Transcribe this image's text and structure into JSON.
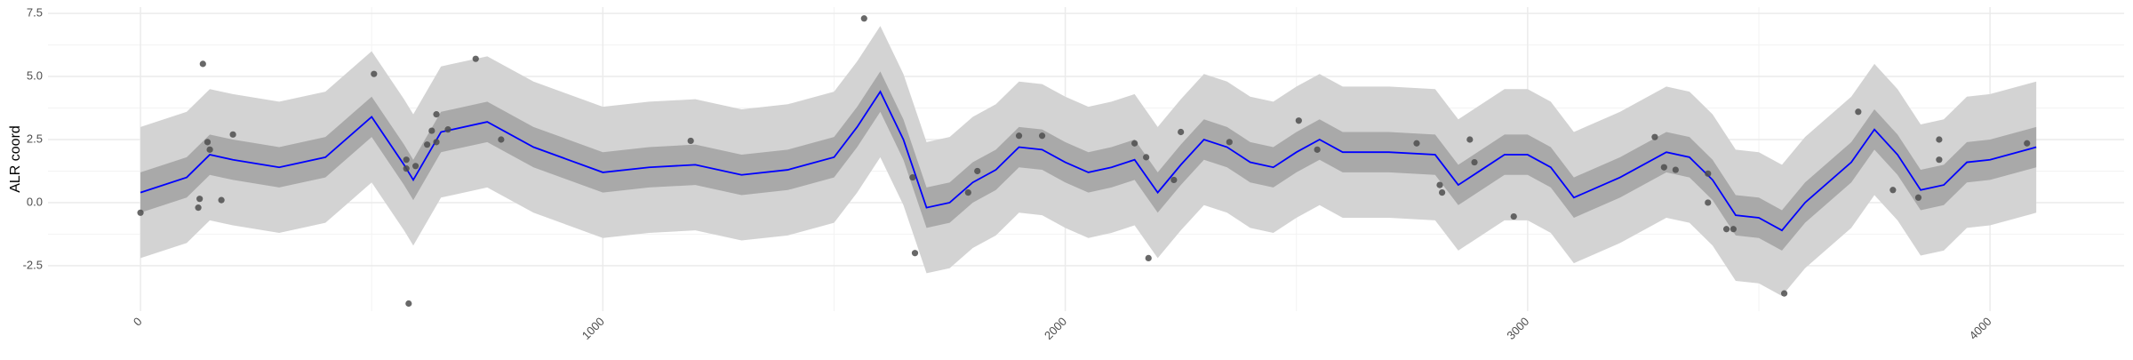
{
  "chart_data": {
    "type": "gp-regression",
    "y_label": "ALR coord",
    "xlim": [
      -200,
      4290
    ],
    "ylim": [
      -4.3,
      7.75
    ],
    "xticks": [
      0,
      1000,
      2000,
      3000,
      4000
    ],
    "yticks": [
      -2.5,
      {
        "value": 0,
        "label": "0.0"
      },
      2.5,
      {
        "value": 5,
        "label": "5.0"
      },
      7.5
    ],
    "grid": true,
    "x": [
      0,
      100,
      150,
      200,
      300,
      400,
      500,
      570,
      590,
      650,
      750,
      850,
      1000,
      1100,
      1200,
      1300,
      1400,
      1500,
      1550,
      1600,
      1650,
      1700,
      1750,
      1800,
      1850,
      1900,
      1950,
      2000,
      2050,
      2100,
      2150,
      2200,
      2250,
      2300,
      2350,
      2400,
      2450,
      2500,
      2550,
      2600,
      2700,
      2800,
      2850,
      2900,
      2950,
      3000,
      3050,
      3100,
      3200,
      3300,
      3350,
      3400,
      3450,
      3500,
      3550,
      3600,
      3700,
      3750,
      3800,
      3850,
      3900,
      3950,
      4000,
      4100
    ],
    "mean": {
      "color": "#0000ff",
      "values": [
        0.4,
        1.0,
        1.9,
        1.7,
        1.4,
        1.8,
        3.4,
        1.5,
        0.9,
        2.8,
        3.2,
        2.2,
        1.2,
        1.4,
        1.5,
        1.1,
        1.3,
        1.8,
        3.0,
        4.4,
        2.5,
        -0.2,
        0.0,
        0.8,
        1.3,
        2.2,
        2.1,
        1.6,
        1.2,
        1.4,
        1.7,
        0.4,
        1.5,
        2.5,
        2.2,
        1.6,
        1.4,
        2.0,
        2.5,
        2.0,
        2.0,
        1.9,
        0.7,
        1.3,
        1.9,
        1.9,
        1.4,
        0.2,
        1.0,
        2.0,
        1.8,
        0.9,
        -0.5,
        -0.6,
        -1.1,
        0.0,
        1.6,
        2.9,
        1.9,
        0.5,
        0.7,
        1.6,
        1.7,
        2.2
      ]
    },
    "bands": [
      {
        "color": "#d3d3d3",
        "lower": [
          -2.2,
          -1.6,
          -0.7,
          -0.9,
          -1.2,
          -0.8,
          0.8,
          -1.1,
          -1.7,
          0.2,
          0.6,
          -0.4,
          -1.4,
          -1.2,
          -1.1,
          -1.5,
          -1.3,
          -0.8,
          0.4,
          1.8,
          -0.1,
          -2.8,
          -2.6,
          -1.8,
          -1.3,
          -0.4,
          -0.5,
          -1.0,
          -1.4,
          -1.2,
          -0.9,
          -2.2,
          -1.1,
          -0.1,
          -0.4,
          -1.0,
          -1.2,
          -0.6,
          -0.1,
          -0.6,
          -0.6,
          -0.7,
          -1.9,
          -1.3,
          -0.7,
          -0.7,
          -1.2,
          -2.4,
          -1.6,
          -0.6,
          -0.8,
          -1.7,
          -3.1,
          -3.2,
          -3.7,
          -2.6,
          -1.0,
          0.3,
          -0.7,
          -2.1,
          -1.9,
          -1.0,
          -0.9,
          -0.4
        ],
        "upper": [
          3.0,
          3.6,
          4.5,
          4.3,
          4.0,
          4.4,
          6.0,
          4.1,
          3.5,
          5.4,
          5.8,
          4.8,
          3.8,
          4.0,
          4.1,
          3.7,
          3.9,
          4.4,
          5.6,
          7.0,
          5.1,
          2.4,
          2.6,
          3.4,
          3.9,
          4.8,
          4.7,
          4.2,
          3.8,
          4.0,
          4.3,
          3.0,
          4.1,
          5.1,
          4.8,
          4.2,
          4.0,
          4.6,
          5.1,
          4.6,
          4.6,
          4.5,
          3.3,
          3.9,
          4.5,
          4.5,
          4.0,
          2.8,
          3.6,
          4.6,
          4.4,
          3.5,
          2.1,
          2.0,
          1.5,
          2.6,
          4.2,
          5.5,
          4.5,
          3.1,
          3.3,
          4.2,
          4.3,
          4.8
        ]
      },
      {
        "color": "#a9a9a9",
        "lower": [
          -0.4,
          0.2,
          1.1,
          0.9,
          0.6,
          1.0,
          2.6,
          0.7,
          0.1,
          2.0,
          2.4,
          1.4,
          0.4,
          0.6,
          0.7,
          0.3,
          0.5,
          1.0,
          2.2,
          3.6,
          1.7,
          -1.0,
          -0.8,
          0.0,
          0.5,
          1.4,
          1.3,
          0.8,
          0.4,
          0.6,
          0.9,
          -0.4,
          0.7,
          1.7,
          1.4,
          0.8,
          0.6,
          1.2,
          1.7,
          1.2,
          1.2,
          1.1,
          -0.1,
          0.5,
          1.1,
          1.1,
          0.6,
          -0.6,
          0.2,
          1.2,
          1.0,
          0.1,
          -1.3,
          -1.4,
          -1.9,
          -0.8,
          0.8,
          2.1,
          1.1,
          -0.3,
          -0.1,
          0.8,
          0.9,
          1.4
        ],
        "upper": [
          1.2,
          1.8,
          2.7,
          2.5,
          2.2,
          2.6,
          4.2,
          2.3,
          1.7,
          3.6,
          4.0,
          3.0,
          2.0,
          2.2,
          2.3,
          1.9,
          2.1,
          2.6,
          3.8,
          5.2,
          3.3,
          0.6,
          0.8,
          1.6,
          2.1,
          3.0,
          2.9,
          2.4,
          2.0,
          2.2,
          2.5,
          1.2,
          2.3,
          3.3,
          3.0,
          2.4,
          2.2,
          2.8,
          3.3,
          2.8,
          2.8,
          2.7,
          1.5,
          2.1,
          2.7,
          2.7,
          2.2,
          1.0,
          1.8,
          2.8,
          2.6,
          1.7,
          0.3,
          0.2,
          -0.3,
          0.8,
          2.4,
          3.7,
          2.7,
          1.3,
          1.5,
          2.4,
          2.5,
          3.0
        ]
      }
    ],
    "points": {
      "color": "#4d4d4d",
      "x": [
        0,
        125,
        128,
        135,
        145,
        150,
        175,
        200,
        505,
        575,
        575,
        580,
        595,
        620,
        630,
        640,
        640,
        665,
        725,
        780,
        1190,
        1565,
        1670,
        1675,
        1790,
        1810,
        1900,
        1950,
        2150,
        2175,
        2180,
        2235,
        2250,
        2355,
        2505,
        2545,
        2760,
        2810,
        2815,
        2875,
        2885,
        2970,
        3275,
        3295,
        3320,
        3390,
        3390,
        3430,
        3445,
        3555,
        3715,
        3790,
        3845,
        3890,
        3890,
        4080
      ],
      "y": [
        -0.4,
        -0.2,
        0.15,
        5.5,
        2.4,
        2.1,
        0.1,
        2.7,
        5.1,
        1.7,
        1.35,
        -4.0,
        1.45,
        2.3,
        2.85,
        3.5,
        2.4,
        2.9,
        5.7,
        2.5,
        2.45,
        7.3,
        1.0,
        -2.0,
        0.4,
        1.25,
        2.65,
        2.65,
        2.35,
        1.8,
        -2.2,
        0.9,
        2.8,
        2.4,
        3.25,
        2.1,
        2.35,
        0.7,
        0.4,
        2.5,
        1.6,
        -0.55,
        2.6,
        1.4,
        1.3,
        1.15,
        0.0,
        -1.05,
        -1.05,
        -3.6,
        3.6,
        0.5,
        0.2,
        2.5,
        1.7,
        2.35
      ]
    }
  }
}
